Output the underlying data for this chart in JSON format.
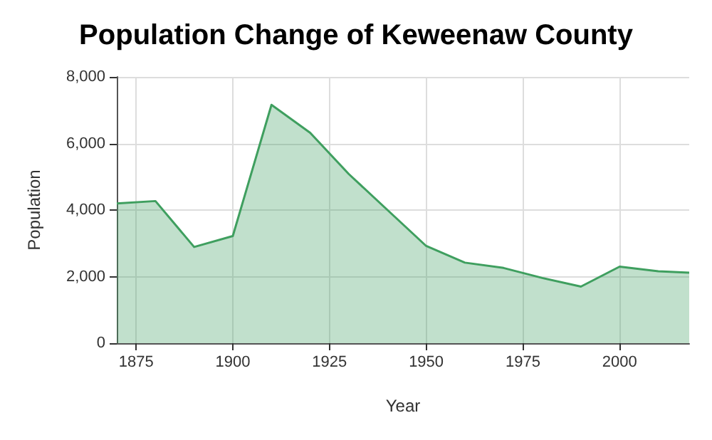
{
  "chart_data": {
    "type": "area",
    "title": "Population Change of Keweenaw County",
    "xlabel": "Year",
    "ylabel": "Population",
    "x": [
      1870,
      1880,
      1890,
      1900,
      1910,
      1920,
      1930,
      1940,
      1950,
      1960,
      1970,
      1980,
      1990,
      2000,
      2010,
      2018
    ],
    "values": [
      4200,
      4270,
      2890,
      3220,
      7160,
      6320,
      5080,
      4000,
      2920,
      2420,
      2260,
      1960,
      1700,
      2300,
      2160,
      2120
    ],
    "color": "#3f9f5f",
    "xlim": [
      1870,
      2018
    ],
    "xticks": [
      1875,
      1900,
      1925,
      1950,
      1975,
      2000
    ],
    "ylim": [
      0,
      8000
    ],
    "yticks": [
      0,
      {
        "value": 2000,
        "label": "2,000"
      },
      {
        "value": 4000,
        "label": "4,000"
      },
      {
        "value": 6000,
        "label": "6,000"
      },
      {
        "value": 8000,
        "label": "8,000"
      }
    ],
    "grid": true,
    "marker": "none",
    "line_style": "solid"
  }
}
